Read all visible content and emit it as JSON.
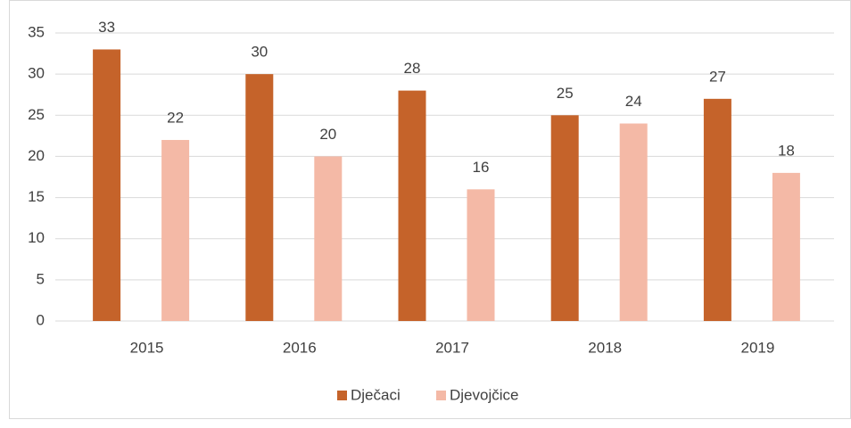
{
  "chart_data": {
    "type": "bar",
    "categories": [
      "2015",
      "2016",
      "2017",
      "2018",
      "2019"
    ],
    "series": [
      {
        "name": "Dječaci",
        "color": "#c5632a",
        "values": [
          33,
          30,
          28,
          25,
          27
        ]
      },
      {
        "name": "Djevojčice",
        "color": "#f4b9a6",
        "values": [
          22,
          20,
          16,
          24,
          18
        ]
      }
    ],
    "ylim": [
      0,
      35
    ],
    "yticks": [
      0,
      5,
      10,
      15,
      20,
      25,
      30,
      35
    ],
    "grid": true,
    "legend": "bottom"
  }
}
